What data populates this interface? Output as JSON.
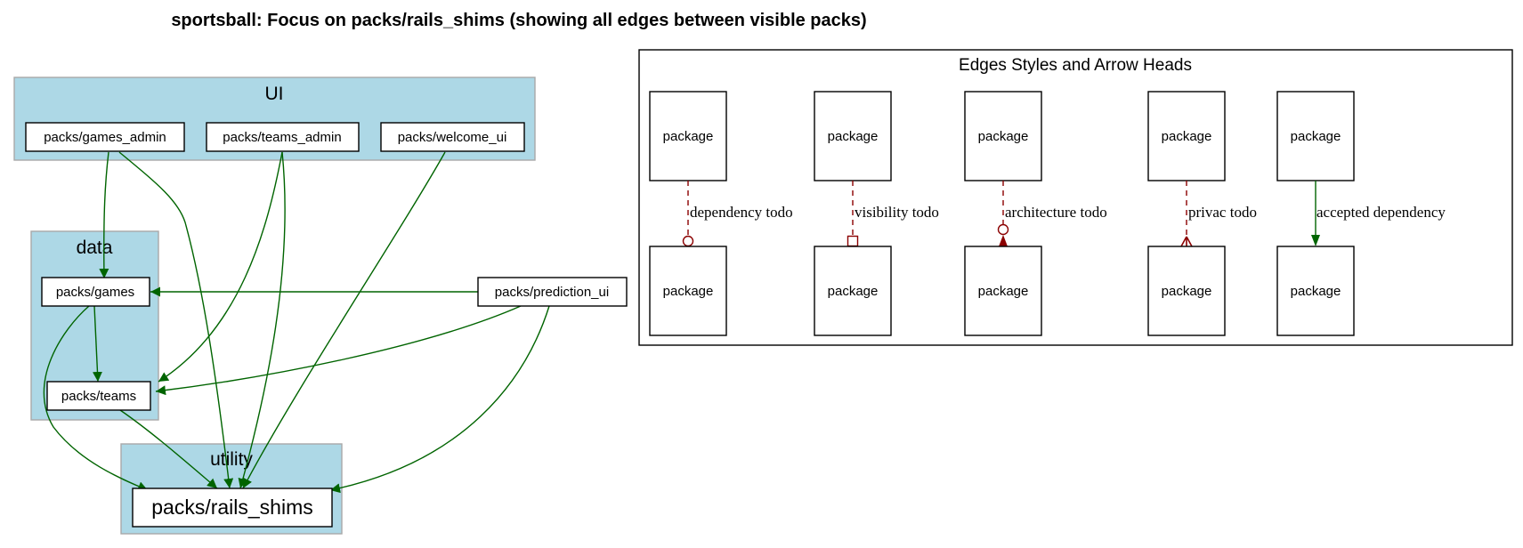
{
  "title": "sportsball: Focus on packs/rails_shims (showing all edges between visible packs)",
  "colors": {
    "cluster_fill": "#add8e6",
    "cluster_border": "#a9a9a9",
    "accepted_edge": "#006400",
    "todo_edge": "#8b0000",
    "node_border": "#000000"
  },
  "clusters": {
    "ui": {
      "label": "UI"
    },
    "data": {
      "label": "data"
    },
    "utility": {
      "label": "utility"
    }
  },
  "nodes": {
    "games_admin": "packs/games_admin",
    "teams_admin": "packs/teams_admin",
    "welcome_ui": "packs/welcome_ui",
    "games": "packs/games",
    "teams": "packs/teams",
    "prediction_ui": "packs/prediction_ui",
    "rails_shims": "packs/rails_shims"
  },
  "edges": [
    {
      "from": "packs/games_admin",
      "to": "packs/games"
    },
    {
      "from": "packs/games_admin",
      "to": "packs/rails_shims"
    },
    {
      "from": "packs/teams_admin",
      "to": "packs/teams"
    },
    {
      "from": "packs/teams_admin",
      "to": "packs/rails_shims"
    },
    {
      "from": "packs/welcome_ui",
      "to": "packs/rails_shims"
    },
    {
      "from": "packs/prediction_ui",
      "to": "packs/games"
    },
    {
      "from": "packs/prediction_ui",
      "to": "packs/teams"
    },
    {
      "from": "packs/prediction_ui",
      "to": "packs/rails_shims"
    },
    {
      "from": "packs/games",
      "to": "packs/teams"
    },
    {
      "from": "packs/games",
      "to": "packs/rails_shims"
    },
    {
      "from": "packs/teams",
      "to": "packs/rails_shims"
    }
  ],
  "legend": {
    "title": "Edges Styles and Arrow Heads",
    "node_label": "package",
    "items": [
      {
        "label": "dependency todo",
        "style": "dashed",
        "arrowhead": "odot"
      },
      {
        "label": "visibility todo",
        "style": "dashed",
        "arrowhead": "obox"
      },
      {
        "label": "architecture todo",
        "style": "dashed",
        "arrowhead": "invodot"
      },
      {
        "label": "privac todo",
        "style": "dashed",
        "arrowhead": "crow"
      },
      {
        "label": "accepted dependency",
        "style": "solid",
        "arrowhead": "normal"
      }
    ]
  }
}
